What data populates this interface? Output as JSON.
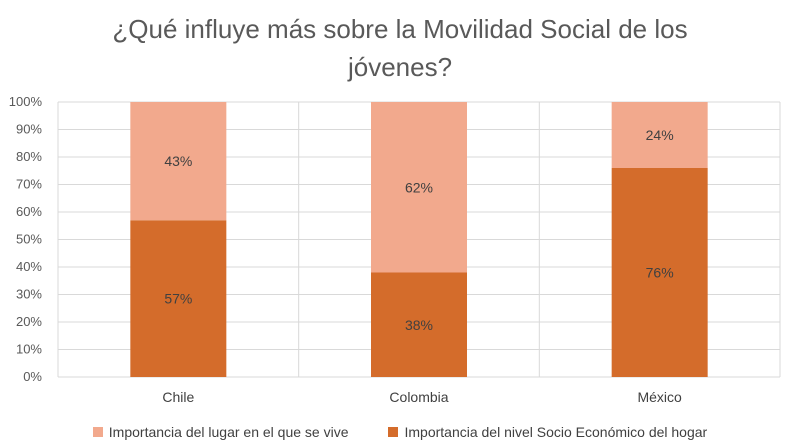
{
  "chart_data": {
    "type": "bar",
    "stacked": true,
    "title": "¿Qué influye más sobre la Movilidad Social de los jóvenes?",
    "categories": [
      "Chile",
      "Colombia",
      "México"
    ],
    "series": [
      {
        "name": "Importancia del nivel Socio Económico del hogar",
        "values": [
          57,
          38,
          76
        ],
        "labels": [
          "57%",
          "38%",
          "76%"
        ],
        "color": "#D46C2B"
      },
      {
        "name": "Importancia del lugar en el que se vive",
        "values": [
          43,
          62,
          24
        ],
        "labels": [
          "43%",
          "62%",
          "24%"
        ],
        "color": "#F2A98D"
      }
    ],
    "y_ticks": [
      "0%",
      "10%",
      "20%",
      "30%",
      "40%",
      "50%",
      "60%",
      "70%",
      "80%",
      "90%",
      "100%"
    ],
    "ylim": [
      0,
      100
    ],
    "grid": true,
    "legend_position": "bottom",
    "legend": [
      {
        "label": "Importancia del lugar en el que se vive",
        "color": "#F2A98D"
      },
      {
        "label": "Importancia del nivel Socio Económico del hogar",
        "color": "#D46C2B"
      }
    ]
  }
}
